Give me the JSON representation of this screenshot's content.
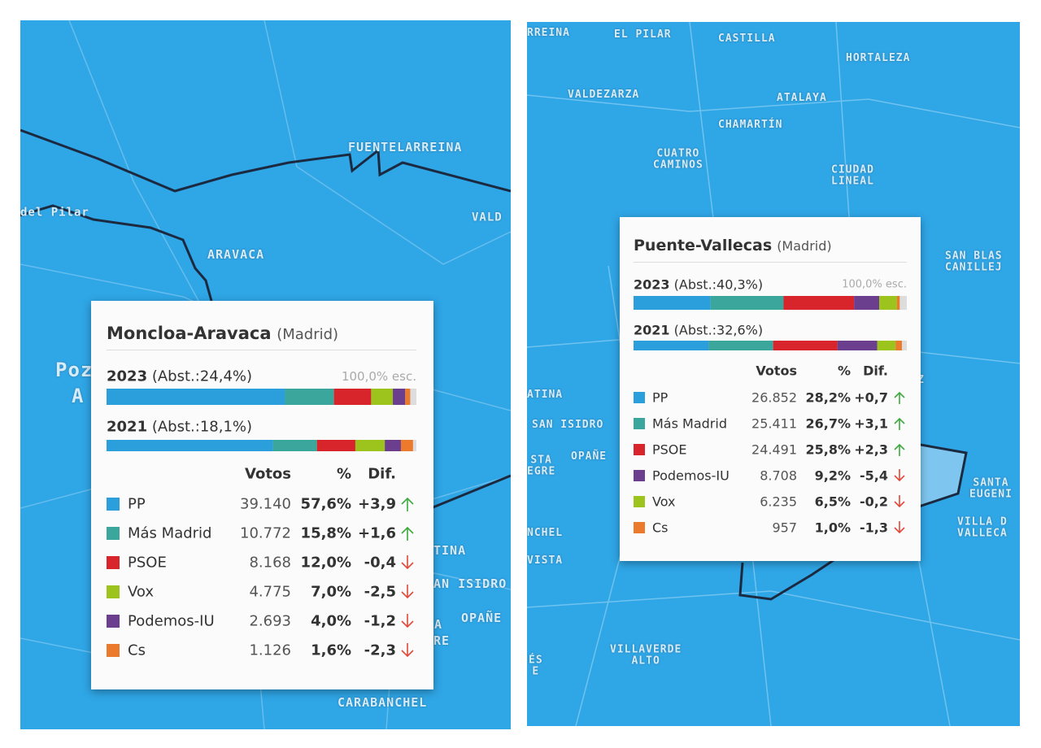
{
  "panels": [
    {
      "map_labels": [
        "FUENTELARREINA",
        "del Pilar",
        "VALD",
        "ARAVACA",
        "Poz",
        "A",
        "TINA",
        "AN ISIDRO",
        "TA",
        "OPAÑE",
        "RE",
        "CARABANCHEL"
      ],
      "popup": {
        "title": "Moncloa-Aravaca",
        "region": "(Madrid)",
        "year_2023": "2023",
        "abst_2023": "(Abst.:24,4%)",
        "escrutado": "100,0% esc.",
        "year_2021": "2021",
        "abst_2021": "(Abst.:18,1%)",
        "headers": [
          "Votos",
          "%",
          "Dif."
        ],
        "rows": [
          {
            "party": "PP",
            "color": "#2b9fdc",
            "votes": "39.140",
            "pct": 57.6,
            "pct_label": "57,6%",
            "dif": "+3,9",
            "trend": "up",
            "pct_2021": 53.7
          },
          {
            "party": "Más Madrid",
            "color": "#3ba69c",
            "votes": "10.772",
            "pct": 15.8,
            "pct_label": "15,8%",
            "dif": "+1,6",
            "trend": "up",
            "pct_2021": 14.2
          },
          {
            "party": "PSOE",
            "color": "#d8252b",
            "votes": "8.168",
            "pct": 12.0,
            "pct_label": "12,0%",
            "dif": "-0,4",
            "trend": "down",
            "pct_2021": 12.4
          },
          {
            "party": "Vox",
            "color": "#9cc41c",
            "votes": "4.775",
            "pct": 7.0,
            "pct_label": "7,0%",
            "dif": "-2,5",
            "trend": "down",
            "pct_2021": 9.5
          },
          {
            "party": "Podemos-IU",
            "color": "#6b3f8e",
            "votes": "2.693",
            "pct": 4.0,
            "pct_label": "4,0%",
            "dif": "-1,2",
            "trend": "down",
            "pct_2021": 5.2
          },
          {
            "party": "Cs",
            "color": "#ec7a2c",
            "votes": "1.126",
            "pct": 1.6,
            "pct_label": "1,6%",
            "dif": "-2,3",
            "trend": "down",
            "pct_2021": 3.9
          }
        ]
      }
    },
    {
      "map_labels": [
        "RREINA",
        "EL PILAR",
        "CASTILLA",
        "HORTALEZA",
        "VALDEZARZA",
        "ATALAYA",
        "CHAMARTÍN",
        "CUATRO\nCAMINOS",
        "CIUDAD\nLINEAL",
        "SAN BLAS\nCANILLEJ",
        "Z",
        "ATINA",
        "SAN ISIDRO",
        "STA\nEGRE",
        "OPAÑE",
        "NCHEL",
        "VISTA",
        "SANTA\nEUGENI",
        "VILLA D\nVALLECA",
        "VILLAVERDE\nALTO",
        "ÉS\nE"
      ],
      "popup": {
        "title": "Puente-Vallecas",
        "region": "(Madrid)",
        "year_2023": "2023",
        "abst_2023": "(Abst.:40,3%)",
        "escrutado": "100,0% esc.",
        "year_2021": "2021",
        "abst_2021": "(Abst.:32,6%)",
        "headers": [
          "Votos",
          "%",
          "Dif."
        ],
        "rows": [
          {
            "party": "PP",
            "color": "#2b9fdc",
            "votes": "26.852",
            "pct": 28.2,
            "pct_label": "28,2%",
            "dif": "+0,7",
            "trend": "up",
            "pct_2021": 27.5
          },
          {
            "party": "Más Madrid",
            "color": "#3ba69c",
            "votes": "25.411",
            "pct": 26.7,
            "pct_label": "26,7%",
            "dif": "+3,1",
            "trend": "up",
            "pct_2021": 23.6
          },
          {
            "party": "PSOE",
            "color": "#d8252b",
            "votes": "24.491",
            "pct": 25.8,
            "pct_label": "25,8%",
            "dif": "+2,3",
            "trend": "up",
            "pct_2021": 23.5
          },
          {
            "party": "Podemos-IU",
            "color": "#6b3f8e",
            "votes": "8.708",
            "pct": 9.2,
            "pct_label": "9,2%",
            "dif": "-5,4",
            "trend": "down",
            "pct_2021": 14.6
          },
          {
            "party": "Vox",
            "color": "#9cc41c",
            "votes": "6.235",
            "pct": 6.5,
            "pct_label": "6,5%",
            "dif": "-0,2",
            "trend": "down",
            "pct_2021": 6.7
          },
          {
            "party": "Cs",
            "color": "#ec7a2c",
            "votes": "957",
            "pct": 1.0,
            "pct_label": "1,0%",
            "dif": "-1,3",
            "trend": "down",
            "pct_2021": 2.3
          }
        ]
      }
    }
  ]
}
